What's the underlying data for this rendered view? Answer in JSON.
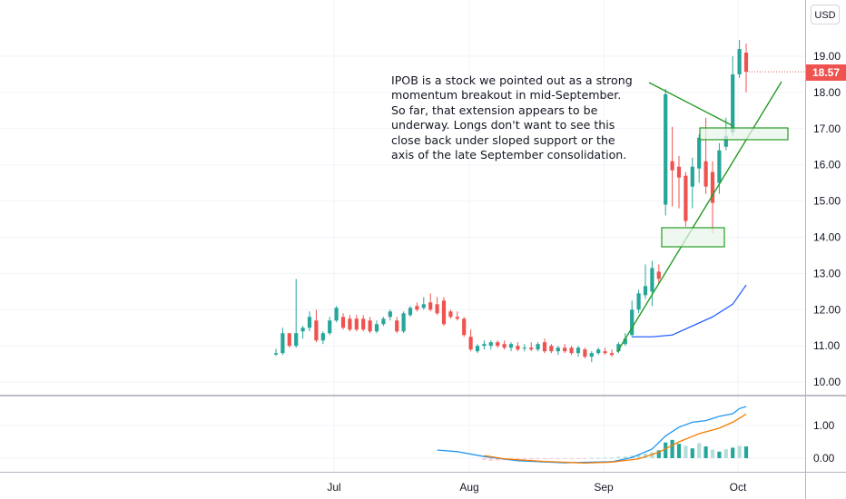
{
  "currency_label": "USD",
  "last_price_label": "18.57",
  "annotation_text": "IPOB is a stock we pointed out as a strong momentum breakout in mid-September. So far, that extension appears to be underway. Longs don't want to see this close back under sloped support or the axis of the late September consolidation.",
  "colors": {
    "up": "#26a69a",
    "down": "#ef5350",
    "ma": "#2962ff",
    "trend": "#259b24",
    "zone_fill": "#e8f5e9",
    "macd": "#2196f3",
    "signal": "#f57c00",
    "hist_up_strong": "#26a69a",
    "hist_up_weak": "#b2dfdb",
    "hist_down": "#ffcdd2",
    "grid": "#f0f3fa"
  },
  "chart_data": [
    {
      "type": "candlestick",
      "x_ticks": [
        "Jul",
        "Aug",
        "Sep",
        "Oct"
      ],
      "y_ticks": [
        "10.00",
        "11.00",
        "12.00",
        "13.00",
        "14.00",
        "15.00",
        "16.00",
        "17.00",
        "18.00",
        "19.00"
      ],
      "ylim": [
        9.5,
        20.5
      ],
      "last_price": 18.57,
      "candles": [
        {
          "o": 10.76,
          "h": 10.92,
          "l": 10.72,
          "c": 10.8
        },
        {
          "o": 10.8,
          "h": 11.5,
          "l": 10.75,
          "c": 11.35
        },
        {
          "o": 11.35,
          "h": 11.35,
          "l": 10.95,
          "c": 11.0
        },
        {
          "o": 11.0,
          "h": 12.85,
          "l": 10.95,
          "c": 11.35
        },
        {
          "o": 11.4,
          "h": 11.55,
          "l": 11.2,
          "c": 11.5
        },
        {
          "o": 11.5,
          "h": 11.95,
          "l": 11.4,
          "c": 11.8
        },
        {
          "o": 11.7,
          "h": 12.0,
          "l": 11.1,
          "c": 11.15
        },
        {
          "o": 11.15,
          "h": 11.4,
          "l": 11.05,
          "c": 11.35
        },
        {
          "o": 11.35,
          "h": 11.8,
          "l": 11.3,
          "c": 11.7
        },
        {
          "o": 11.7,
          "h": 12.1,
          "l": 11.65,
          "c": 12.05
        },
        {
          "o": 11.8,
          "h": 11.9,
          "l": 11.45,
          "c": 11.5
        },
        {
          "o": 11.75,
          "h": 11.85,
          "l": 11.4,
          "c": 11.45
        },
        {
          "o": 11.75,
          "h": 11.85,
          "l": 11.4,
          "c": 11.45
        },
        {
          "o": 11.75,
          "h": 11.85,
          "l": 11.4,
          "c": 11.45
        },
        {
          "o": 11.7,
          "h": 11.8,
          "l": 11.35,
          "c": 11.4
        },
        {
          "o": 11.4,
          "h": 11.7,
          "l": 11.35,
          "c": 11.6
        },
        {
          "o": 11.6,
          "h": 11.8,
          "l": 11.55,
          "c": 11.75
        },
        {
          "o": 11.8,
          "h": 12.0,
          "l": 11.7,
          "c": 11.95
        },
        {
          "o": 11.7,
          "h": 11.8,
          "l": 11.35,
          "c": 11.4
        },
        {
          "o": 11.4,
          "h": 11.95,
          "l": 11.35,
          "c": 11.9
        },
        {
          "o": 11.85,
          "h": 12.1,
          "l": 11.8,
          "c": 12.05
        },
        {
          "o": 12.1,
          "h": 12.2,
          "l": 11.95,
          "c": 12.0
        },
        {
          "o": 12.05,
          "h": 12.35,
          "l": 12.0,
          "c": 12.15
        },
        {
          "o": 12.2,
          "h": 12.45,
          "l": 11.95,
          "c": 12.0
        },
        {
          "o": 12.15,
          "h": 12.35,
          "l": 11.85,
          "c": 11.9
        },
        {
          "o": 12.25,
          "h": 12.35,
          "l": 11.55,
          "c": 11.6
        },
        {
          "o": 11.95,
          "h": 12.0,
          "l": 11.75,
          "c": 11.8
        },
        {
          "o": 11.8,
          "h": 11.95,
          "l": 11.7,
          "c": 11.75
        },
        {
          "o": 11.75,
          "h": 11.8,
          "l": 11.25,
          "c": 11.3
        },
        {
          "o": 11.25,
          "h": 11.45,
          "l": 10.85,
          "c": 10.9
        },
        {
          "o": 10.85,
          "h": 11.05,
          "l": 10.8,
          "c": 11.0
        },
        {
          "o": 11.0,
          "h": 11.15,
          "l": 10.9,
          "c": 11.05
        },
        {
          "o": 11.0,
          "h": 11.15,
          "l": 10.9,
          "c": 11.1
        },
        {
          "o": 11.1,
          "h": 11.15,
          "l": 10.95,
          "c": 11.0
        },
        {
          "o": 11.05,
          "h": 11.15,
          "l": 10.9,
          "c": 10.95
        },
        {
          "o": 10.95,
          "h": 11.1,
          "l": 10.85,
          "c": 11.05
        },
        {
          "o": 11.0,
          "h": 11.1,
          "l": 10.85,
          "c": 10.9
        },
        {
          "o": 10.95,
          "h": 11.05,
          "l": 10.85,
          "c": 10.95
        },
        {
          "o": 10.95,
          "h": 11.1,
          "l": 10.85,
          "c": 10.9
        },
        {
          "o": 10.9,
          "h": 11.1,
          "l": 10.85,
          "c": 11.05
        },
        {
          "o": 11.1,
          "h": 11.2,
          "l": 10.8,
          "c": 10.85
        },
        {
          "o": 11.0,
          "h": 11.05,
          "l": 10.8,
          "c": 10.85
        },
        {
          "o": 10.85,
          "h": 11.0,
          "l": 10.75,
          "c": 10.95
        },
        {
          "o": 10.95,
          "h": 11.05,
          "l": 10.8,
          "c": 10.85
        },
        {
          "o": 10.95,
          "h": 11.0,
          "l": 10.75,
          "c": 10.8
        },
        {
          "o": 10.8,
          "h": 11.0,
          "l": 10.7,
          "c": 10.95
        },
        {
          "o": 10.9,
          "h": 10.95,
          "l": 10.65,
          "c": 10.7
        },
        {
          "o": 10.7,
          "h": 10.85,
          "l": 10.55,
          "c": 10.8
        },
        {
          "o": 10.8,
          "h": 10.95,
          "l": 10.75,
          "c": 10.9
        },
        {
          "o": 10.85,
          "h": 10.95,
          "l": 10.75,
          "c": 10.8
        },
        {
          "o": 10.8,
          "h": 10.9,
          "l": 10.7,
          "c": 10.75
        },
        {
          "o": 10.85,
          "h": 11.1,
          "l": 10.8,
          "c": 11.05
        },
        {
          "o": 11.05,
          "h": 11.35,
          "l": 11.0,
          "c": 11.2
        },
        {
          "o": 11.3,
          "h": 12.25,
          "l": 11.25,
          "c": 12.0
        },
        {
          "o": 12.0,
          "h": 12.55,
          "l": 11.9,
          "c": 12.45
        },
        {
          "o": 12.4,
          "h": 13.25,
          "l": 12.3,
          "c": 12.65
        },
        {
          "o": 12.5,
          "h": 13.35,
          "l": 12.1,
          "c": 13.15
        },
        {
          "o": 13.05,
          "h": 13.25,
          "l": 12.7,
          "c": 12.85
        },
        {
          "o": 14.9,
          "h": 18.1,
          "l": 14.6,
          "c": 17.95
        },
        {
          "o": 16.1,
          "h": 17.05,
          "l": 14.85,
          "c": 15.85
        },
        {
          "o": 15.95,
          "h": 16.25,
          "l": 14.8,
          "c": 15.65
        },
        {
          "o": 15.7,
          "h": 15.8,
          "l": 14.3,
          "c": 14.45
        },
        {
          "o": 15.4,
          "h": 16.2,
          "l": 14.8,
          "c": 15.95
        },
        {
          "o": 15.9,
          "h": 16.85,
          "l": 15.5,
          "c": 16.75
        },
        {
          "o": 16.1,
          "h": 17.3,
          "l": 15.2,
          "c": 15.4
        },
        {
          "o": 15.8,
          "h": 16.1,
          "l": 14.1,
          "c": 14.95
        },
        {
          "o": 15.5,
          "h": 16.6,
          "l": 15.2,
          "c": 16.4
        },
        {
          "o": 16.5,
          "h": 17.3,
          "l": 16.4,
          "c": 16.8
        },
        {
          "o": 16.9,
          "h": 19.0,
          "l": 16.8,
          "c": 18.5
        },
        {
          "o": 18.5,
          "h": 19.45,
          "l": 18.4,
          "c": 19.2
        },
        {
          "o": 19.1,
          "h": 19.35,
          "l": 18.0,
          "c": 18.57
        }
      ],
      "moving_average": [
        {
          "i": 53,
          "v": 11.25
        },
        {
          "i": 56,
          "v": 11.25
        },
        {
          "i": 59,
          "v": 11.3
        },
        {
          "i": 62,
          "v": 11.55
        },
        {
          "i": 65,
          "v": 11.8
        },
        {
          "i": 68,
          "v": 12.15
        },
        {
          "i": 70,
          "v": 12.68
        }
      ]
    },
    {
      "type": "macd",
      "y_ticks": [
        "0.00",
        "1.00"
      ],
      "ylim": [
        -0.35,
        1.95
      ],
      "macd_line": [
        {
          "i": 24,
          "v": 0.25
        },
        {
          "i": 27,
          "v": 0.2
        },
        {
          "i": 31,
          "v": 0.05
        },
        {
          "i": 36,
          "v": -0.08
        },
        {
          "i": 43,
          "v": -0.14
        },
        {
          "i": 50,
          "v": -0.11
        },
        {
          "i": 53,
          "v": 0.02
        },
        {
          "i": 56,
          "v": 0.28
        },
        {
          "i": 58,
          "v": 0.68
        },
        {
          "i": 60,
          "v": 0.95
        },
        {
          "i": 62,
          "v": 1.1
        },
        {
          "i": 64,
          "v": 1.15
        },
        {
          "i": 66,
          "v": 1.28
        },
        {
          "i": 68,
          "v": 1.36
        },
        {
          "i": 69,
          "v": 1.52
        },
        {
          "i": 70,
          "v": 1.58
        }
      ],
      "signal_line": [
        {
          "i": 31,
          "v": 0.08
        },
        {
          "i": 34,
          "v": -0.02
        },
        {
          "i": 40,
          "v": -0.1
        },
        {
          "i": 46,
          "v": -0.15
        },
        {
          "i": 50,
          "v": -0.12
        },
        {
          "i": 54,
          "v": -0.02
        },
        {
          "i": 57,
          "v": 0.18
        },
        {
          "i": 60,
          "v": 0.5
        },
        {
          "i": 63,
          "v": 0.75
        },
        {
          "i": 66,
          "v": 0.92
        },
        {
          "i": 68,
          "v": 1.1
        },
        {
          "i": 70,
          "v": 1.35
        }
      ],
      "histogram": [
        {
          "i": 31,
          "v": -0.06
        },
        {
          "i": 32,
          "v": -0.08
        },
        {
          "i": 33,
          "v": -0.07
        },
        {
          "i": 34,
          "v": -0.06
        },
        {
          "i": 35,
          "v": -0.05
        },
        {
          "i": 36,
          "v": -0.05
        },
        {
          "i": 37,
          "v": -0.04
        },
        {
          "i": 38,
          "v": -0.04
        },
        {
          "i": 39,
          "v": -0.03
        },
        {
          "i": 40,
          "v": -0.03
        },
        {
          "i": 41,
          "v": -0.02
        },
        {
          "i": 42,
          "v": -0.02
        },
        {
          "i": 43,
          "v": -0.02
        },
        {
          "i": 44,
          "v": -0.02
        },
        {
          "i": 45,
          "v": -0.01
        },
        {
          "i": 46,
          "v": -0.01
        },
        {
          "i": 47,
          "v": 0.01
        },
        {
          "i": 48,
          "v": 0.01
        },
        {
          "i": 49,
          "v": 0.02
        },
        {
          "i": 50,
          "v": 0.02
        },
        {
          "i": 51,
          "v": 0.04
        },
        {
          "i": 52,
          "v": 0.05
        },
        {
          "i": 53,
          "v": 0.08
        },
        {
          "i": 54,
          "v": 0.11
        },
        {
          "i": 55,
          "v": 0.14
        },
        {
          "i": 56,
          "v": 0.18
        },
        {
          "i": 57,
          "v": 0.24
        },
        {
          "i": 58,
          "v": 0.48
        },
        {
          "i": 59,
          "v": 0.56
        },
        {
          "i": 60,
          "v": 0.44
        },
        {
          "i": 61,
          "v": 0.38
        },
        {
          "i": 62,
          "v": 0.3
        },
        {
          "i": 63,
          "v": 0.46
        },
        {
          "i": 64,
          "v": 0.36
        },
        {
          "i": 65,
          "v": 0.26
        },
        {
          "i": 66,
          "v": 0.2
        },
        {
          "i": 67,
          "v": 0.27
        },
        {
          "i": 68,
          "v": 0.32
        },
        {
          "i": 69,
          "v": 0.38
        },
        {
          "i": 70,
          "v": 0.36
        }
      ]
    }
  ]
}
